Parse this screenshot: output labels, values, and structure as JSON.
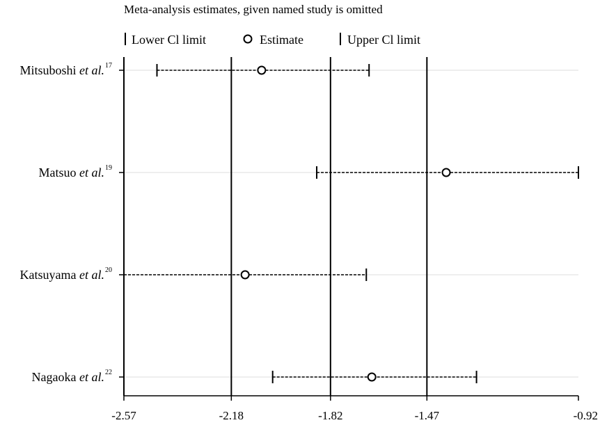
{
  "chart_data": {
    "type": "forest",
    "title": "Meta-analysis estimates, given named study is omitted",
    "legend": {
      "position": "top",
      "items": [
        {
          "symbol": "bar",
          "label": "Lower Cl limit"
        },
        {
          "symbol": "circle",
          "label": "Estimate"
        },
        {
          "symbol": "bar",
          "label": "Upper Cl limit"
        }
      ]
    },
    "x_axis": {
      "min": -2.57,
      "max": -0.92,
      "ticks": [
        "-2.57",
        "-2.18",
        "-1.82",
        "-1.47",
        "-0.92"
      ],
      "reference_lines": [
        -2.18,
        -1.82,
        -1.47
      ]
    },
    "grid": {
      "horizontal_lines": true
    },
    "studies": [
      {
        "name": "Mitsuboshi",
        "suffix": "et al.",
        "ref": "17",
        "lower": -2.45,
        "estimate": -2.07,
        "upper": -1.68
      },
      {
        "name": "Matsuo",
        "suffix": "et al.",
        "ref": "19",
        "lower": -1.87,
        "estimate": -1.4,
        "upper": -0.92
      },
      {
        "name": "Katsuyama",
        "suffix": "et al.",
        "ref": "20",
        "lower": -2.57,
        "estimate": -2.13,
        "upper": -1.69
      },
      {
        "name": "Nagaoka",
        "suffix": "et al.",
        "ref": "22",
        "lower": -2.03,
        "estimate": -1.67,
        "upper": -1.29
      }
    ]
  }
}
